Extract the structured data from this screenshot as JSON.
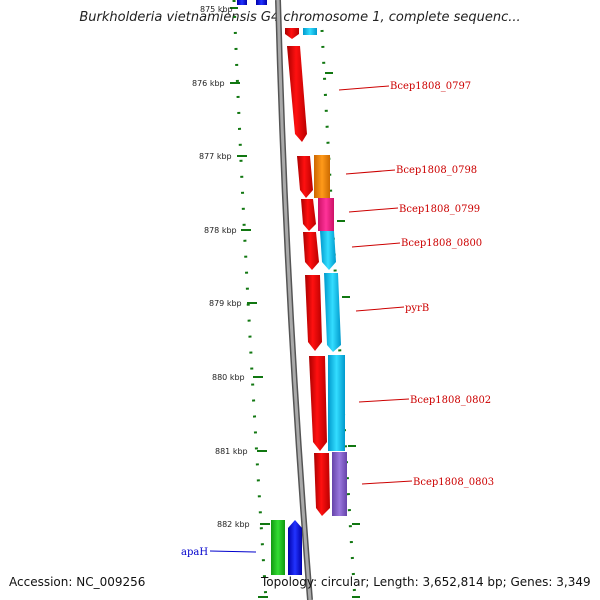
{
  "title": "Burkholderia vietnamiensis G4 chromosome 1, complete sequenc...",
  "accession": "Accession: NC_009256",
  "summary": "Topology: circular; Length: 3,652,814 bp; Genes: 3,349",
  "colors": {
    "forward": "#ff0000",
    "reverse_label": "#0000cc",
    "forward_label": "#cc0000",
    "backbone": "#888888",
    "ticks": "#0a7a0a"
  },
  "kbp_ticks": [
    "875 kbp",
    "876 kbp",
    "877 kbp",
    "878 kbp",
    "879 kbp",
    "880 kbp",
    "881 kbp",
    "882 kbp"
  ],
  "genes": [
    {
      "name": "Bcep1808_0797",
      "color": "#ff0000"
    },
    {
      "name": "Bcep1808_0798",
      "color": "#ff8800"
    },
    {
      "name": "Bcep1808_0799",
      "color": "#ff2288"
    },
    {
      "name": "Bcep1808_0800",
      "color": "#00ccff"
    },
    {
      "name": "pyrB",
      "color": "#00ccff"
    },
    {
      "name": "Bcep1808_0802",
      "color": "#00ccff"
    },
    {
      "name": "Bcep1808_0803",
      "color": "#8866cc"
    },
    {
      "name": "apaH",
      "color": "#0000ff"
    }
  ]
}
